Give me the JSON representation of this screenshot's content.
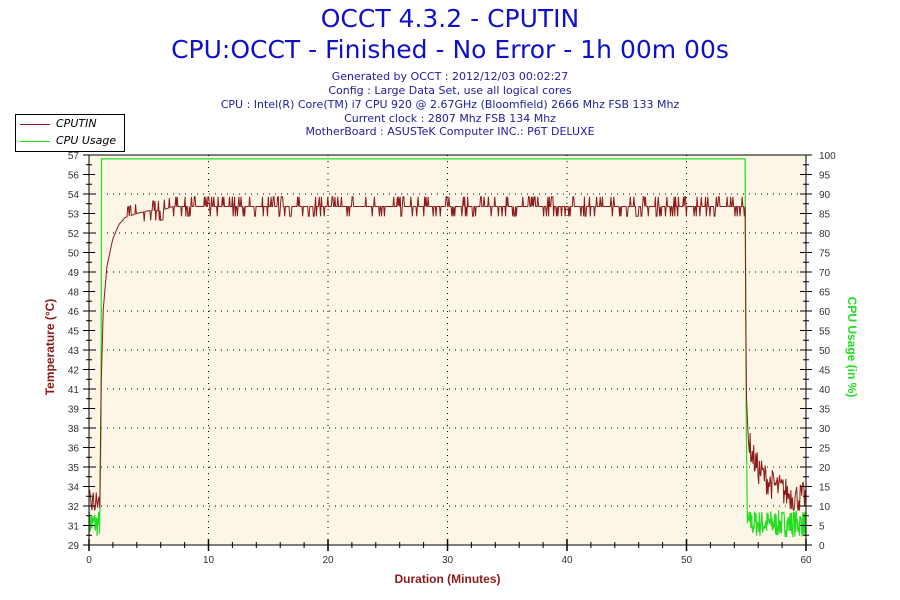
{
  "header": {
    "title": "OCCT 4.3.2 - CPUTIN",
    "subtitle": "CPU:OCCT - Finished - No Error - 1h 00m 00s",
    "info_lines": [
      "Generated by OCCT : 2012/12/03 00:02:27",
      "Config : Large Data Set, use all logical cores",
      "CPU : Intel(R) Core(TM) i7 CPU 920 @ 2.67GHz (Bloomfield) 2666 Mhz FSB 133 Mhz",
      "Current clock : 2807 Mhz FSB 134 Mhz",
      "MotherBoard : ASUSTeK Computer INC.: P6T DELUXE"
    ]
  },
  "legend": {
    "items": [
      {
        "label": "CPUTIN",
        "color": "#8b1a1a"
      },
      {
        "label": "CPU Usage",
        "color": "#22dd22"
      }
    ]
  },
  "colors": {
    "title": "#1010c8",
    "temperature": "#8b1a1a",
    "usage": "#22dd22",
    "plot_bg": "#fdf6e6"
  },
  "chart_data": {
    "type": "line",
    "title": "OCCT 4.3.2 - CPUTIN",
    "subtitle": "CPU:OCCT - Finished - No Error - 1h 00m 00s",
    "xlabel": "Duration (Minutes)",
    "ylabel": "Temperature (°C)",
    "y2label": "CPU Usage (in %)",
    "xlim": [
      0,
      60
    ],
    "ylim": [
      29,
      57
    ],
    "y2lim": [
      0,
      100
    ],
    "x_ticks": [
      0,
      10,
      20,
      30,
      40,
      50,
      60
    ],
    "y_ticks": [
      29,
      31,
      32,
      34,
      35,
      36,
      38,
      39,
      41,
      42,
      43,
      45,
      46,
      48,
      49,
      50,
      52,
      53,
      54,
      56,
      57
    ],
    "y2_ticks": [
      0,
      5,
      10,
      15,
      20,
      25,
      30,
      35,
      40,
      45,
      50,
      55,
      60,
      65,
      70,
      75,
      80,
      85,
      90,
      95,
      100
    ],
    "grid": true,
    "legend_position": "top-left",
    "series": [
      {
        "name": "CPUTIN",
        "axis": "left",
        "x": [
          0,
          0.5,
          0.9,
          1.0,
          1.2,
          1.5,
          2.0,
          2.5,
          3.0,
          4.0,
          5.0,
          6.0,
          7.0,
          10,
          20,
          30,
          40,
          50,
          54.9,
          55.0,
          55.2,
          55.5,
          56,
          57,
          58,
          59,
          60
        ],
        "values": [
          32,
          32,
          32,
          40,
          46,
          49,
          51,
          52,
          52.5,
          52.8,
          53,
          53,
          53.3,
          53.3,
          53.3,
          53.3,
          53.3,
          53.3,
          53.3,
          40,
          36,
          35,
          34,
          33,
          32.5,
          32,
          32
        ]
      },
      {
        "name": "CPU Usage",
        "axis": "right",
        "x": [
          0,
          0.9,
          1.0,
          1.1,
          54.9,
          55.0,
          55.1,
          60
        ],
        "values": [
          4,
          4,
          30,
          99,
          99,
          30,
          5,
          5
        ]
      }
    ]
  }
}
